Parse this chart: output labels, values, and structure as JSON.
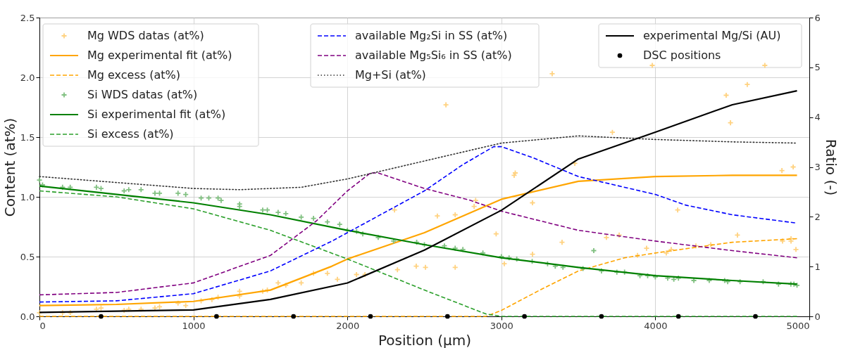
{
  "chart_data": {
    "type": "line",
    "xlabel": "Position (µm)",
    "ylabel": "Content (at%)",
    "y2label": "Ratio (-)",
    "xlim": [
      0,
      5000
    ],
    "xticks": [
      0,
      1000,
      2000,
      3000,
      4000,
      5000
    ],
    "ylim": [
      0,
      2.5
    ],
    "yticks": [
      {
        "value": 0,
        "label": "0.0"
      },
      {
        "value": 0.5,
        "label": "0.5"
      },
      {
        "value": 1,
        "label": "1.0"
      },
      {
        "value": 1.5,
        "label": "1.5"
      },
      {
        "value": 2,
        "label": "2.0"
      },
      {
        "value": 2.5,
        "label": "2.5"
      }
    ],
    "y2lim": [
      0,
      6
    ],
    "y2ticks": [
      0,
      1,
      2,
      3,
      4,
      5,
      6
    ],
    "grid": true,
    "legend": "top",
    "series": [
      {
        "name": "Mg WDS datas (at%)",
        "type": "scatter",
        "marker": "cross",
        "color": "#ffd280",
        "x": [
          0,
          150,
          200,
          370,
          400,
          550,
          580,
          660,
          750,
          780,
          900,
          950,
          1050,
          1120,
          1160,
          1300,
          1300,
          1450,
          1480,
          1550,
          1600,
          1700,
          1780,
          1870,
          1935,
          2059,
          2114,
          2306,
          2325,
          2447,
          2507,
          2584,
          2640,
          2700,
          2700,
          2823,
          2833,
          2966,
          3019,
          3083,
          3090,
          3202,
          3202,
          3330,
          3394,
          3477,
          3682,
          3721,
          3765,
          3884,
          3943,
          3980,
          4071,
          4103,
          4145,
          4263,
          4360,
          4460,
          4488,
          4533,
          4597,
          4711,
          4822,
          4826,
          4881,
          4881,
          4895,
          4913
        ],
        "values": [
          0.03,
          0.03,
          0.03,
          0.06,
          0.07,
          0.05,
          0.06,
          0.06,
          0.07,
          0.08,
          0.11,
          0.09,
          0.13,
          0.14,
          0.16,
          0.17,
          0.21,
          0.21,
          0.22,
          0.28,
          0.26,
          0.28,
          0.36,
          0.36,
          0.31,
          0.35,
          0.35,
          0.89,
          0.39,
          0.42,
          0.41,
          0.84,
          1.77,
          0.85,
          0.41,
          0.92,
          0.97,
          0.69,
          0.44,
          1.18,
          1.2,
          0.95,
          0.52,
          2.03,
          0.62,
          1.28,
          0.66,
          1.54,
          0.68,
          0.51,
          0.57,
          2.1,
          0.53,
          0.56,
          0.89,
          0.59,
          0.6,
          1.85,
          1.62,
          0.68,
          1.94,
          2.1,
          1.22,
          0.63,
          0.65,
          0.63,
          1.25,
          0.56
        ]
      },
      {
        "name": "Mg experimental fit (at%)",
        "line_style": "solid",
        "color": "#ffa500",
        "x": [
          0,
          500,
          1000,
          1500,
          1900,
          2000,
          2500,
          3000,
          3500,
          4000,
          4500,
          4920
        ],
        "values": [
          0.09,
          0.1,
          0.125,
          0.22,
          0.42,
          0.48,
          0.7,
          0.98,
          1.13,
          1.17,
          1.18,
          1.18
        ]
      },
      {
        "name": "Mg excess (at%)",
        "line_style": "dashed",
        "color": "#ffa500",
        "x": [
          0,
          2900,
          3000,
          3250,
          3500,
          3800,
          4000,
          4500,
          4920
        ],
        "values": [
          0,
          0,
          0.05,
          0.22,
          0.38,
          0.49,
          0.53,
          0.62,
          0.65
        ]
      },
      {
        "name": "Si WDS datas (at%)",
        "type": "scatter",
        "marker": "cross",
        "color": "#80c080",
        "x": [
          0,
          20,
          150,
          200,
          370,
          400,
          550,
          580,
          660,
          750,
          780,
          900,
          950,
          1050,
          1100,
          1160,
          1180,
          1300,
          1300,
          1450,
          1480,
          1550,
          1600,
          1700,
          1780,
          1870,
          1950,
          2000,
          2060,
          2100,
          2200,
          2300,
          2450,
          2500,
          2630,
          2700,
          2750,
          2880,
          3000,
          3050,
          3100,
          3200,
          3300,
          3350,
          3400,
          3530,
          3600,
          3650,
          3750,
          3800,
          3900,
          3950,
          4000,
          4080,
          4120,
          4150,
          4250,
          4350,
          4450,
          4470,
          4550,
          4700,
          4800,
          4880,
          4900,
          4920
        ],
        "values": [
          1.14,
          1.1,
          1.08,
          1.08,
          1.08,
          1.07,
          1.05,
          1.06,
          1.06,
          1.03,
          1.03,
          1.03,
          1.02,
          0.99,
          0.99,
          0.99,
          0.97,
          0.94,
          0.92,
          0.89,
          0.89,
          0.87,
          0.86,
          0.83,
          0.82,
          0.79,
          0.77,
          0.72,
          0.71,
          0.69,
          0.66,
          0.63,
          0.62,
          0.6,
          0.59,
          0.57,
          0.56,
          0.53,
          0.5,
          0.49,
          0.48,
          0.46,
          0.44,
          0.42,
          0.41,
          0.4,
          0.55,
          0.38,
          0.37,
          0.37,
          0.34,
          0.34,
          0.33,
          0.32,
          0.31,
          0.32,
          0.3,
          0.3,
          0.3,
          0.29,
          0.29,
          0.29,
          0.27,
          0.27,
          0.27,
          0.26
        ]
      },
      {
        "name": "Si experimental fit (at%)",
        "line_style": "solid",
        "color": "#008000",
        "x": [
          0,
          1000,
          1500,
          2000,
          2500,
          3000,
          3500,
          4000,
          4500,
          4920
        ],
        "values": [
          1.09,
          0.95,
          0.85,
          0.72,
          0.6,
          0.49,
          0.41,
          0.34,
          0.3,
          0.27
        ]
      },
      {
        "name": "Si excess (at%)",
        "line_style": "dashed",
        "color": "#2ca02c",
        "x": [
          0,
          500,
          1000,
          1500,
          2000,
          2500,
          2900,
          3000,
          4920
        ],
        "values": [
          1.05,
          1.0,
          0.9,
          0.72,
          0.48,
          0.22,
          0.02,
          0,
          0
        ]
      },
      {
        "name": "available Mg₂Si in SS (at%)",
        "line_style": "dashed",
        "color": "#0000ff",
        "x": [
          0,
          500,
          1000,
          1500,
          1900,
          2000,
          2500,
          2750,
          2950,
          3000,
          3200,
          3500,
          4000,
          4200,
          4500,
          4920
        ],
        "values": [
          0.12,
          0.13,
          0.19,
          0.38,
          0.63,
          0.7,
          1.05,
          1.27,
          1.42,
          1.42,
          1.33,
          1.17,
          1.02,
          0.93,
          0.85,
          0.78
        ]
      },
      {
        "name": "available Mg₅Si₆ in SS (at%)",
        "line_style": "dashed",
        "color": "#800080",
        "x": [
          0,
          500,
          1000,
          1500,
          1800,
          2000,
          2150,
          2200,
          2500,
          2800,
          3000,
          3500,
          4000,
          4500,
          4920
        ],
        "values": [
          0.18,
          0.2,
          0.28,
          0.51,
          0.8,
          1.05,
          1.2,
          1.2,
          1.07,
          0.97,
          0.88,
          0.72,
          0.63,
          0.55,
          0.49
        ]
      },
      {
        "name": "Mg+Si (at%)",
        "line_style": "dotted",
        "color": "#333333",
        "x": [
          0,
          500,
          1000,
          1300,
          1700,
          2000,
          2500,
          3000,
          3500,
          4000,
          4500,
          4920
        ],
        "values": [
          1.17,
          1.12,
          1.07,
          1.06,
          1.08,
          1.15,
          1.3,
          1.45,
          1.51,
          1.48,
          1.46,
          1.45
        ]
      },
      {
        "name": "experimental Mg/Si (AU)",
        "axis": "y2",
        "line_style": "solid",
        "color": "#000000",
        "x": [
          0,
          1000,
          1500,
          2000,
          2500,
          3000,
          3500,
          4000,
          4500,
          4920
        ],
        "values": [
          0.08,
          0.13,
          0.34,
          0.67,
          1.33,
          2.13,
          3.16,
          3.7,
          4.25,
          4.53
        ]
      },
      {
        "name": "DSC positions",
        "axis": "y2",
        "type": "scatter",
        "marker": "circle",
        "color": "#000000",
        "x": [
          400,
          1150,
          1650,
          2150,
          2650,
          3150,
          3650,
          4150,
          4650
        ],
        "values": [
          0,
          0,
          0,
          0,
          0,
          0,
          0,
          0,
          0
        ]
      }
    ]
  }
}
